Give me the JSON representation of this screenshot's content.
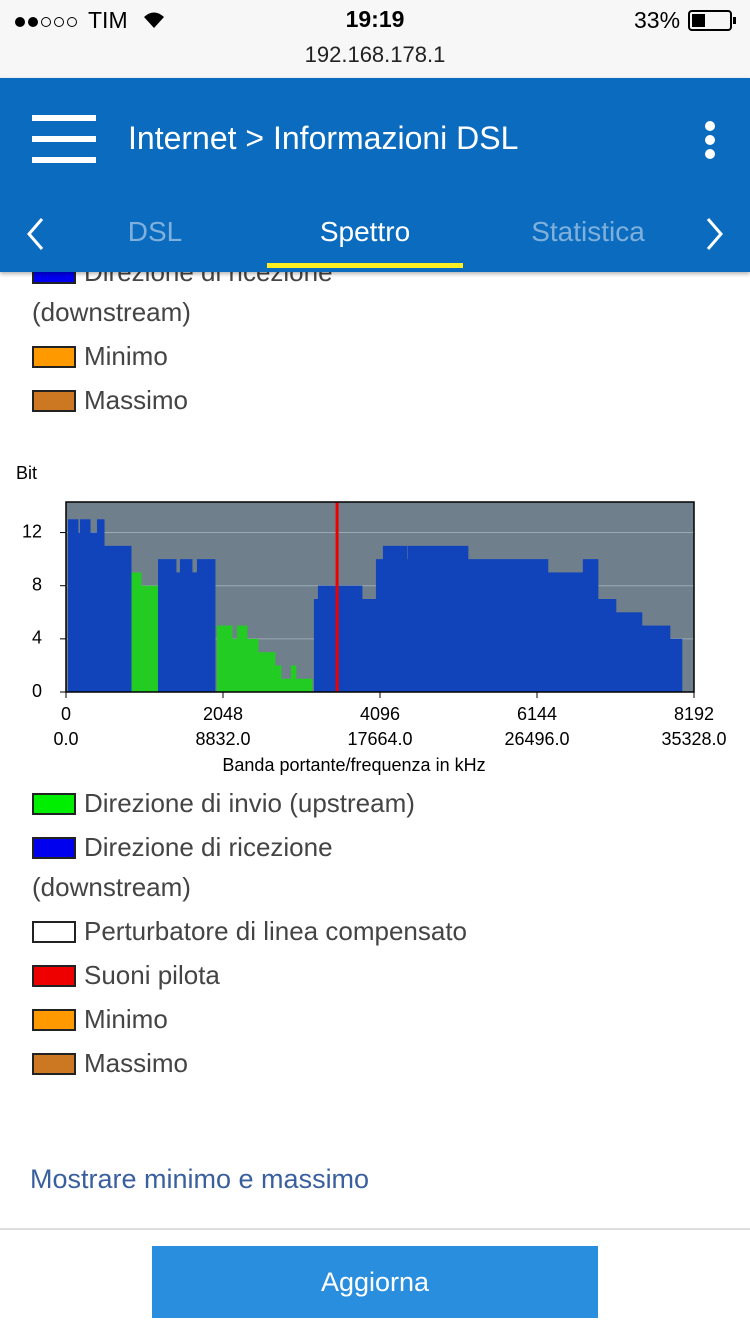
{
  "status_bar": {
    "carrier": "TIM",
    "time": "19:19",
    "battery": "33%",
    "url": "192.168.178.1"
  },
  "header": {
    "title": "Internet > Informazioni DSL",
    "tabs": [
      "DSL",
      "Spettro",
      "Statistica"
    ]
  },
  "chart_data": {
    "type": "step-area",
    "y_label": "Bit",
    "x_label": "Banda portante/frequenza in kHz",
    "xlim": [
      0,
      8192
    ],
    "xticks": [
      0,
      2048,
      4096,
      6144,
      8192
    ],
    "x2lim": [
      0,
      35328
    ],
    "x2ticks": [
      {
        "value": 0,
        "label": "0.0"
      },
      {
        "value": 8832,
        "label": "8832.0"
      },
      {
        "value": 17664,
        "label": "17664.0"
      },
      {
        "value": 26496,
        "label": "26496.0"
      },
      {
        "value": 35328,
        "label": "35328.0"
      }
    ],
    "ylim": [
      0,
      14.3
    ],
    "yticks": [
      0,
      4,
      8,
      12
    ],
    "grid": true,
    "series": [
      {
        "name": "Direzione di invio (upstream)",
        "color": "#22cc22",
        "legend_color": "#00ee00",
        "x": [
          848,
          978,
          1200,
          1969,
          2165,
          2230,
          2360,
          2504,
          2725,
          2804,
          2934,
          2999,
          3208
        ],
        "values": [
          9,
          8,
          0,
          5,
          4,
          5,
          4,
          3,
          2,
          1,
          2,
          1,
          0
        ]
      },
      {
        "name": "Direzione di ricezione (downstream)",
        "color": "#1144bb",
        "legend_color": "#0000ee",
        "x": [
          26,
          156,
          182,
          313,
          404,
          496,
          848,
          1200,
          1434,
          1486,
          1643,
          1708,
          1943,
          3234,
          3286,
          3860,
          4043,
          4134,
          4447,
          4460,
          5242,
          6285,
          6742,
          6938,
          7172,
          7511,
          7877,
          8033
        ],
        "values": [
          13,
          12,
          13,
          12,
          13,
          11,
          0,
          10,
          9,
          10,
          9,
          10,
          0,
          7,
          8,
          7,
          10,
          11,
          10,
          11,
          10,
          9,
          10,
          7,
          6,
          5,
          4,
          0
        ]
      },
      {
        "name": "Perturbatore di linea compensato",
        "color": "#ffffff",
        "x": [],
        "values": []
      },
      {
        "name": "Suoni pilota",
        "color": "#ee0000",
        "x": [
          3536
        ]
      },
      {
        "name": "Minimo",
        "color": "#ff9900",
        "x": [],
        "values": []
      },
      {
        "name": "Massimo",
        "color": "#cc7722",
        "x": [],
        "values": []
      }
    ]
  },
  "link": "Mostrare minimo e massimo",
  "button": "Aggiorna"
}
